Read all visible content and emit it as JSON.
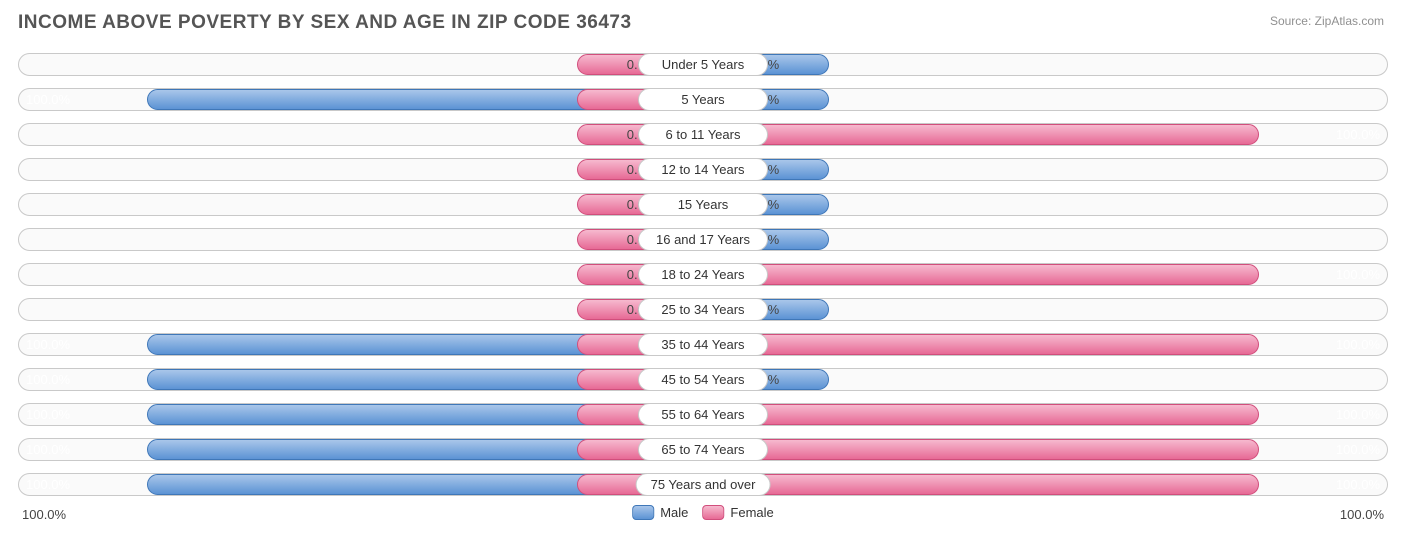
{
  "title": "INCOME ABOVE POVERTY BY SEX AND AGE IN ZIP CODE 36473",
  "source": "Source: ZipAtlas.com",
  "chart": {
    "type": "diverging-bar",
    "min_bar_pct": 12,
    "label_half_pct": 9.5,
    "axis": {
      "left": "100.0%",
      "right": "100.0%"
    },
    "colors": {
      "male_fill_top": "#a9c6ea",
      "male_fill_bottom": "#5c93d4",
      "male_border": "#3f77b8",
      "female_fill_top": "#f6b9ce",
      "female_fill_bottom": "#e76a95",
      "female_border": "#d14e7c",
      "track_border": "#c9c9c9",
      "track_bg": "#fafafa",
      "text": "#444444",
      "text_inside": "#ffffff"
    },
    "legend": [
      {
        "label": "Male",
        "key": "male"
      },
      {
        "label": "Female",
        "key": "female"
      }
    ],
    "rows": [
      {
        "category": "Under 5 Years",
        "male": 0.0,
        "female": 0.0
      },
      {
        "category": "5 Years",
        "male": 100.0,
        "female": 0.0
      },
      {
        "category": "6 to 11 Years",
        "male": 0.0,
        "female": 100.0
      },
      {
        "category": "12 to 14 Years",
        "male": 0.0,
        "female": 0.0
      },
      {
        "category": "15 Years",
        "male": 0.0,
        "female": 0.0
      },
      {
        "category": "16 and 17 Years",
        "male": 0.0,
        "female": 0.0
      },
      {
        "category": "18 to 24 Years",
        "male": 0.0,
        "female": 100.0
      },
      {
        "category": "25 to 34 Years",
        "male": 0.0,
        "female": 0.0
      },
      {
        "category": "35 to 44 Years",
        "male": 100.0,
        "female": 100.0
      },
      {
        "category": "45 to 54 Years",
        "male": 100.0,
        "female": 0.0
      },
      {
        "category": "55 to 64 Years",
        "male": 100.0,
        "female": 100.0
      },
      {
        "category": "65 to 74 Years",
        "male": 100.0,
        "female": 100.0
      },
      {
        "category": "75 Years and over",
        "male": 100.0,
        "female": 100.0
      }
    ]
  }
}
